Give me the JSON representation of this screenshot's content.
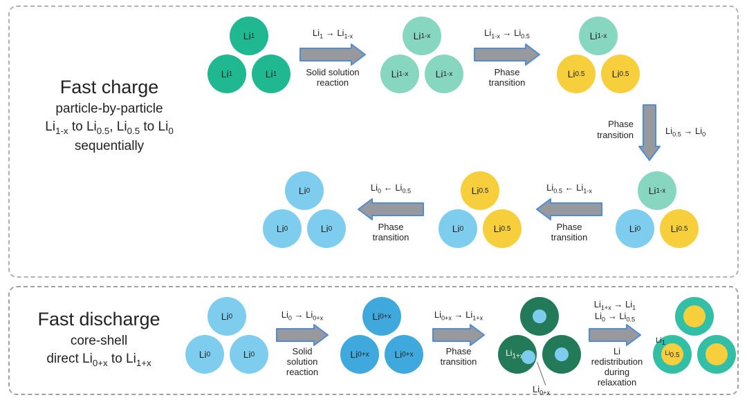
{
  "colors": {
    "green_dark": "#1fb890",
    "green_mint": "#86d6c0",
    "yellow": "#f7cf3d",
    "blue_light": "#7ecdee",
    "blue_mid": "#3fa9de",
    "green_deep": "#237a58",
    "teal_ring": "#33bfa5",
    "arrow_fill": "#97999c",
    "arrow_stroke": "#4e8dd3",
    "dashed_border": "#b0b0b0"
  },
  "titles": {
    "charge_main": "Fast charge",
    "charge_sub1": "particle-by-particle",
    "charge_sub2_html": "Li<span class='sub'>1-x</span> to Li<span class='sub'>0.5</span>, Li<span class='sub'>0.5</span> to Li<span class='sub'>0</span>",
    "charge_sub3": "sequentially",
    "discharge_main": "Fast discharge",
    "discharge_sub1": "core-shell",
    "discharge_sub2_html": "direct Li<span class='sub'>0+x</span> to Li<span class='sub'>1+x</span>"
  },
  "labels": {
    "Li1": "Li<span class='sub'>1</span>",
    "Li1x": "Li<span class='sub'>1-x</span>",
    "Li05": "Li<span class='sub'>0.5</span>",
    "Li0": "Li<span class='sub'>0</span>",
    "Li0x": "Li<span class='sub'>0+x</span>",
    "Li1px": "Li<span class='sub'>1+x</span>"
  },
  "arrow_labels": {
    "a1_above": "Li<span class='sub'>1</span> → Li<span class='sub'>1-x</span>",
    "a1_below": "Solid solution<br>reaction",
    "a2_above": "Li<span class='sub'>1-x</span> → Li<span class='sub'>0.5</span>",
    "a2_below": "Phase<br>transition",
    "a3_side": "Li<span class='sub'>0.5</span> → Li<span class='sub'>0</span>",
    "a3_side_label": "Phase<br>transition",
    "a4_above": "Li<span class='sub'>0.5</span> ← Li<span class='sub'>1-x</span>",
    "a4_below": "Phase<br>transition",
    "a5_above": "Li<span class='sub'>0</span> ← Li<span class='sub'>0.5</span>",
    "a5_below": "Phase<br>transition",
    "d1_above": "Li<span class='sub'>0</span> → Li<span class='sub'>0+x</span>",
    "d1_below": "Solid<br>solution<br>reaction",
    "d2_above": "Li<span class='sub'>0+x</span> → Li<span class='sub'>1+x</span>",
    "d2_below": "Phase<br>transition",
    "d3_above": "Li<span class='sub'>1+x</span> → Li<span class='sub'>1</span><br>Li<span class='sub'>0</span> → Li<span class='sub'>0.5</span>",
    "d3_below": "Li<br>redistribution<br>during<br>relaxation"
  },
  "callout": {
    "text": "Li<span class='sub'>0+x</span>"
  },
  "geometry": {
    "circle_radius": 28,
    "small_radius": 11,
    "arrow_length": 78,
    "arrow_head_w": 20,
    "arrow_body_h": 18
  }
}
